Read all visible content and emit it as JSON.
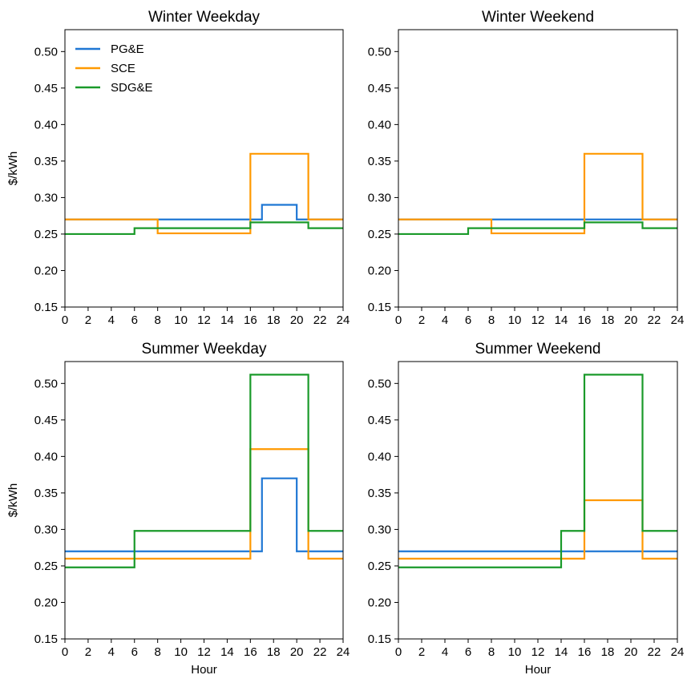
{
  "chart_data": [
    {
      "type": "line",
      "step": "post",
      "title": "Winter Weekday",
      "xlabel": "",
      "ylabel": "$/kWh",
      "xlim": [
        0,
        24
      ],
      "ylim": [
        0.15,
        0.53
      ],
      "xticks": [
        "0",
        "2",
        "4",
        "6",
        "8",
        "10",
        "12",
        "14",
        "16",
        "18",
        "20",
        "22",
        "24"
      ],
      "yticks": [
        "0.15",
        "0.20",
        "0.25",
        "0.30",
        "0.35",
        "0.40",
        "0.45",
        "0.50"
      ],
      "grid": false,
      "legend": "top-left",
      "series": [
        {
          "name": "PG&E",
          "color": "#1f77d4",
          "x": [
            0,
            17,
            20,
            24
          ],
          "y": [
            0.27,
            0.29,
            0.27,
            0.27
          ]
        },
        {
          "name": "SCE",
          "color": "#ff9900",
          "x": [
            0,
            8,
            16,
            21,
            24
          ],
          "y": [
            0.27,
            0.251,
            0.36,
            0.27,
            0.27
          ]
        },
        {
          "name": "SDG&E",
          "color": "#1a9a2a",
          "x": [
            0,
            6,
            16,
            21,
            24
          ],
          "y": [
            0.25,
            0.258,
            0.266,
            0.258,
            0.258
          ]
        }
      ]
    },
    {
      "type": "line",
      "step": "post",
      "title": "Winter Weekend",
      "xlabel": "",
      "ylabel": "",
      "xlim": [
        0,
        24
      ],
      "ylim": [
        0.15,
        0.53
      ],
      "xticks": [
        "0",
        "2",
        "4",
        "6",
        "8",
        "10",
        "12",
        "14",
        "16",
        "18",
        "20",
        "22",
        "24"
      ],
      "yticks": [
        "0.15",
        "0.20",
        "0.25",
        "0.30",
        "0.35",
        "0.40",
        "0.45",
        "0.50"
      ],
      "grid": false,
      "series": [
        {
          "color": "#1f77d4",
          "x": [
            0,
            24
          ],
          "y": [
            0.27,
            0.27
          ]
        },
        {
          "color": "#ff9900",
          "x": [
            0,
            8,
            16,
            21,
            24
          ],
          "y": [
            0.27,
            0.251,
            0.36,
            0.27,
            0.27
          ]
        },
        {
          "color": "#1a9a2a",
          "x": [
            0,
            6,
            16,
            21,
            24
          ],
          "y": [
            0.25,
            0.258,
            0.266,
            0.258,
            0.258
          ]
        }
      ]
    },
    {
      "type": "line",
      "step": "post",
      "title": "Summer Weekday",
      "xlabel": "Hour",
      "ylabel": "$/kWh",
      "xlim": [
        0,
        24
      ],
      "ylim": [
        0.15,
        0.53
      ],
      "xticks": [
        "0",
        "2",
        "4",
        "6",
        "8",
        "10",
        "12",
        "14",
        "16",
        "18",
        "20",
        "22",
        "24"
      ],
      "yticks": [
        "0.15",
        "0.20",
        "0.25",
        "0.30",
        "0.35",
        "0.40",
        "0.45",
        "0.50"
      ],
      "grid": false,
      "series": [
        {
          "color": "#1f77d4",
          "x": [
            0,
            17,
            20,
            24
          ],
          "y": [
            0.27,
            0.37,
            0.27,
            0.27
          ]
        },
        {
          "color": "#ff9900",
          "x": [
            0,
            16,
            21,
            24
          ],
          "y": [
            0.26,
            0.41,
            0.26,
            0.26
          ]
        },
        {
          "color": "#1a9a2a",
          "x": [
            0,
            6,
            16,
            21,
            24
          ],
          "y": [
            0.248,
            0.298,
            0.512,
            0.298,
            0.298
          ]
        }
      ]
    },
    {
      "type": "line",
      "step": "post",
      "title": "Summer Weekend",
      "xlabel": "Hour",
      "ylabel": "",
      "xlim": [
        0,
        24
      ],
      "ylim": [
        0.15,
        0.53
      ],
      "xticks": [
        "0",
        "2",
        "4",
        "6",
        "8",
        "10",
        "12",
        "14",
        "16",
        "18",
        "20",
        "22",
        "24"
      ],
      "yticks": [
        "0.15",
        "0.20",
        "0.25",
        "0.30",
        "0.35",
        "0.40",
        "0.45",
        "0.50"
      ],
      "grid": false,
      "series": [
        {
          "color": "#1f77d4",
          "x": [
            0,
            24
          ],
          "y": [
            0.27,
            0.27
          ]
        },
        {
          "color": "#ff9900",
          "x": [
            0,
            16,
            21,
            24
          ],
          "y": [
            0.26,
            0.34,
            0.26,
            0.26
          ]
        },
        {
          "color": "#1a9a2a",
          "x": [
            0,
            14,
            16,
            21,
            24
          ],
          "y": [
            0.248,
            0.298,
            0.512,
            0.298,
            0.298
          ]
        }
      ]
    }
  ]
}
